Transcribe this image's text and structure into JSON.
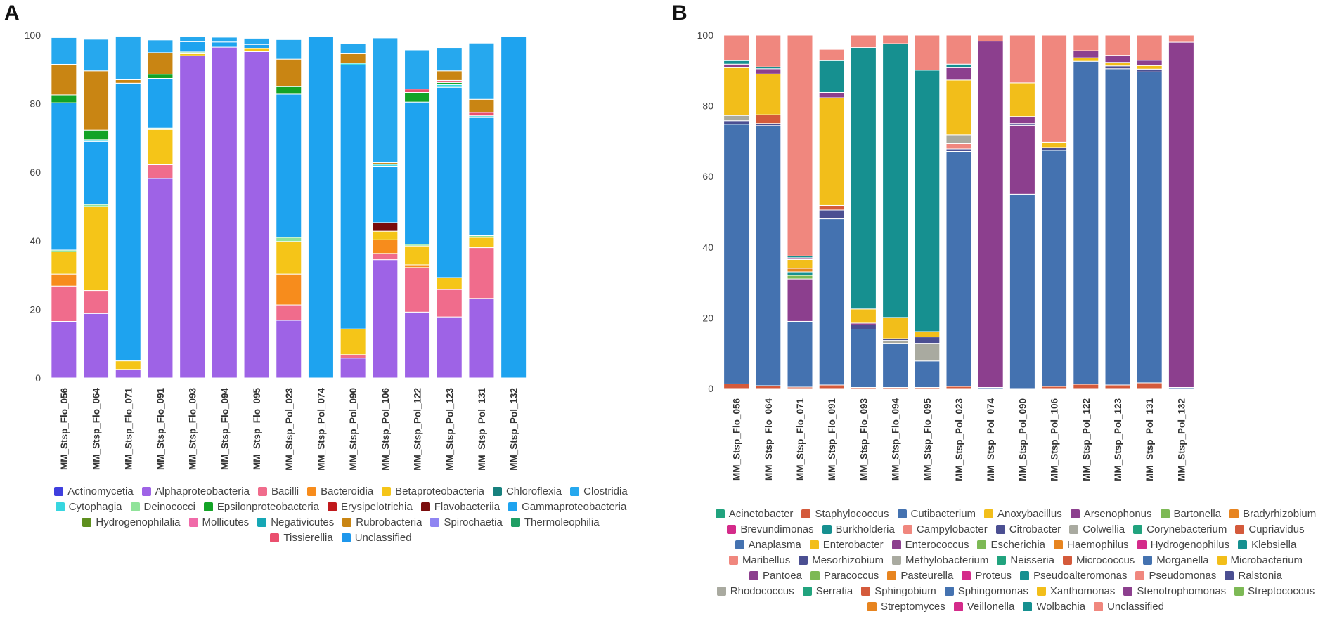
{
  "panel_labels": {
    "a": "A",
    "b": "B"
  },
  "chart_data": [
    {
      "type": "bar",
      "stacked": true,
      "panel": "A",
      "title": "",
      "xlabel": "",
      "ylabel": "",
      "ylim": [
        0,
        100
      ],
      "yticks": [
        0,
        20,
        40,
        60,
        80,
        100
      ],
      "categories": [
        "MM_Stsp_Flo_056",
        "MM_Stsp_Flo_064",
        "MM_Stsp_Flo_071",
        "MM_Stsp_Flo_091",
        "MM_Stsp_Flo_093",
        "MM_Stsp_Flo_094",
        "MM_Stsp_Flo_095",
        "MM_Stsp_Pol_023",
        "MM_Stsp_Pol_074",
        "MM_Stsp_Pol_090",
        "MM_Stsp_Pol_106",
        "MM_Stsp_Pol_122",
        "MM_Stsp_Pol_123",
        "MM_Stsp_Pol_131",
        "MM_Stsp_Pol_132"
      ],
      "legend": [
        {
          "name": "Actinomycetia",
          "color": "#3F3FDE"
        },
        {
          "name": "Alphaproteobacteria",
          "color": "#9E63E6"
        },
        {
          "name": "Bacilli",
          "color": "#F06C8C"
        },
        {
          "name": "Bacteroidia",
          "color": "#F78C1C"
        },
        {
          "name": "Betaproteobacteria",
          "color": "#F5C518"
        },
        {
          "name": "Chloroflexia",
          "color": "#17807D"
        },
        {
          "name": "Clostridia",
          "color": "#26A8EE"
        },
        {
          "name": "Cytophagia",
          "color": "#37D6E0"
        },
        {
          "name": "Deinococci",
          "color": "#90E39A"
        },
        {
          "name": "Epsilonproteobacteria",
          "color": "#13A326"
        },
        {
          "name": "Erysipelotrichia",
          "color": "#C0191C"
        },
        {
          "name": "Flavobacteriia",
          "color": "#7A0C0C"
        },
        {
          "name": "Gammaproteobacteria",
          "color": "#1EA3EF"
        },
        {
          "name": "Hydrogenophilalia",
          "color": "#5E8F1E"
        },
        {
          "name": "Mollicutes",
          "color": "#F06AA8"
        },
        {
          "name": "Negativicutes",
          "color": "#16A7B5"
        },
        {
          "name": "Rubrobacteria",
          "color": "#C98513"
        },
        {
          "name": "Spirochaetia",
          "color": "#8F85F2"
        },
        {
          "name": "Thermoleophilia",
          "color": "#1F9E64"
        },
        {
          "name": "Tissierellia",
          "color": "#EA4F6E"
        },
        {
          "name": "Unclassified",
          "color": "#1E97EC"
        }
      ],
      "series": [
        {
          "name": "Alphaproteobacteria",
          "color": "#9E63E6",
          "values": [
            16.5,
            18.8,
            2.5,
            58.2,
            94,
            96.5,
            95.2,
            16.8,
            0,
            5.8,
            34.5,
            19.2,
            17.8,
            23.2,
            0
          ]
        },
        {
          "name": "Bacilli",
          "color": "#F06C8C",
          "values": [
            10.3,
            6.7,
            0,
            4,
            0,
            0,
            0,
            4.5,
            0,
            1,
            1.8,
            13,
            8,
            14.8,
            0
          ]
        },
        {
          "name": "Bacteroidia",
          "color": "#F78C1C",
          "values": [
            3.5,
            0,
            0,
            0,
            0,
            0,
            0,
            9,
            0,
            0,
            4,
            0.8,
            0,
            0,
            0
          ]
        },
        {
          "name": "Betaproteobacteria",
          "color": "#F5C518",
          "values": [
            6.5,
            24.5,
            2.5,
            10.3,
            0.6,
            0,
            0.9,
            9.5,
            0,
            7.5,
            2.5,
            5.5,
            3.5,
            3,
            0
          ]
        },
        {
          "name": "Deinococci",
          "color": "#90E39A",
          "values": [
            0.5,
            0.6,
            0,
            0.4,
            0.5,
            0,
            0,
            1.2,
            0,
            0,
            0,
            0.5,
            0,
            0.5,
            0
          ]
        },
        {
          "name": "Flavobacteriia",
          "color": "#7A0C0C",
          "values": [
            0,
            0,
            0,
            0,
            0,
            0,
            0,
            0,
            0,
            0,
            2.5,
            0,
            0,
            0,
            0
          ]
        },
        {
          "name": "Gammaproteobacteria",
          "color": "#1EA3EF",
          "values": [
            43,
            18.4,
            81,
            14.5,
            3,
            1.5,
            1.2,
            41.8,
            99.6,
            77,
            16.5,
            41.5,
            55.5,
            34.5,
            99.6
          ]
        },
        {
          "name": "Cytophagia",
          "color": "#37D6E0",
          "values": [
            0,
            0.5,
            0,
            0,
            0,
            0,
            0,
            0,
            0,
            0.5,
            0.5,
            0,
            0.8,
            0.5,
            0
          ]
        },
        {
          "name": "Epsilonproteobacteria",
          "color": "#13A326",
          "values": [
            2.3,
            2.8,
            0,
            1.2,
            0,
            0,
            0,
            2.2,
            0,
            0,
            0,
            2.8,
            0.6,
            0,
            0
          ]
        },
        {
          "name": "Tissierellia",
          "color": "#EA4F6E",
          "values": [
            0,
            0,
            0,
            0,
            0,
            0,
            0,
            0,
            0,
            0,
            0,
            1,
            0.6,
            1,
            0
          ]
        },
        {
          "name": "Rubrobacteria",
          "color": "#C98513",
          "values": [
            8.9,
            17.3,
            1,
            6.3,
            0,
            0,
            0,
            8,
            0,
            2.8,
            0.5,
            0,
            2.8,
            3.8,
            0
          ]
        },
        {
          "name": "Clostridia",
          "color": "#26A8EE",
          "values": [
            7.8,
            9.2,
            12.7,
            3.7,
            1.5,
            1.4,
            1.8,
            5.7,
            0,
            3,
            36.4,
            11.4,
            6.6,
            16.4,
            0
          ]
        }
      ]
    },
    {
      "type": "bar",
      "stacked": true,
      "panel": "B",
      "title": "",
      "xlabel": "",
      "ylabel": "",
      "ylim": [
        0,
        100
      ],
      "yticks": [
        0,
        20,
        40,
        60,
        80,
        100
      ],
      "categories": [
        "MM_Stsp_Flo_056",
        "MM_Stsp_Flo_064",
        "MM_Stsp_Flo_071",
        "MM_Stsp_Flo_091",
        "MM_Stsp_Flo_093",
        "MM_Stsp_Flo_094",
        "MM_Stsp_Flo_095",
        "MM_Stsp_Pol_023",
        "MM_Stsp_Pol_074",
        "MM_Stsp_Pol_090",
        "MM_Stsp_Pol_106",
        "MM_Stsp_Pol_122",
        "MM_Stsp_Pol_123",
        "MM_Stsp_Pol_131",
        "MM_Stsp_Pol_132"
      ],
      "legend": [
        {
          "name": "Acinetobacter",
          "color": "#21A37E"
        },
        {
          "name": "Staphylococcus",
          "color": "#D45A3B"
        },
        {
          "name": "Cutibacterium",
          "color": "#4472B0"
        },
        {
          "name": "Anoxybacillus",
          "color": "#F2BE1A"
        },
        {
          "name": "Arsenophonus",
          "color": "#8C3F8E"
        },
        {
          "name": "Bartonella",
          "color": "#7DB955"
        },
        {
          "name": "Bradyrhizobium",
          "color": "#E7841F"
        },
        {
          "name": "Brevundimonas",
          "color": "#D42B8A"
        },
        {
          "name": "Burkholderia",
          "color": "#169090"
        },
        {
          "name": "Campylobacter",
          "color": "#F0877E"
        },
        {
          "name": "Citrobacter",
          "color": "#4B4F92"
        },
        {
          "name": "Colwellia",
          "color": "#A9AAA0"
        },
        {
          "name": "Corynebacterium",
          "color": "#21A37E"
        },
        {
          "name": "Cupriavidus",
          "color": "#D45A3B"
        },
        {
          "name": "Anaplasma",
          "color": "#4472B0"
        },
        {
          "name": "Enterobacter",
          "color": "#F2BE1A"
        },
        {
          "name": "Enterococcus",
          "color": "#8C3F8E"
        },
        {
          "name": "Escherichia",
          "color": "#7DB955"
        },
        {
          "name": "Haemophilus",
          "color": "#E7841F"
        },
        {
          "name": "Hydrogenophilus",
          "color": "#D42B8A"
        },
        {
          "name": "Klebsiella",
          "color": "#169090"
        },
        {
          "name": "Maribellus",
          "color": "#F0877E"
        },
        {
          "name": "Mesorhizobium",
          "color": "#4B4F92"
        },
        {
          "name": "Methylobacterium",
          "color": "#A9AAA0"
        },
        {
          "name": "Neisseria",
          "color": "#21A37E"
        },
        {
          "name": "Micrococcus",
          "color": "#D45A3B"
        },
        {
          "name": "Morganella",
          "color": "#4472B0"
        },
        {
          "name": "Microbacterium",
          "color": "#F2BE1A"
        },
        {
          "name": "Pantoea",
          "color": "#8C3F8E"
        },
        {
          "name": "Paracoccus",
          "color": "#7DB955"
        },
        {
          "name": "Pasteurella",
          "color": "#E7841F"
        },
        {
          "name": "Proteus",
          "color": "#D42B8A"
        },
        {
          "name": "Pseudoalteromonas",
          "color": "#169090"
        },
        {
          "name": "Pseudomonas",
          "color": "#F0877E"
        },
        {
          "name": "Ralstonia",
          "color": "#4B4F92"
        },
        {
          "name": "Rhodococcus",
          "color": "#A9AAA0"
        },
        {
          "name": "Serratia",
          "color": "#21A37E"
        },
        {
          "name": "Sphingobium",
          "color": "#D45A3B"
        },
        {
          "name": "Sphingomonas",
          "color": "#4472B0"
        },
        {
          "name": "Xanthomonas",
          "color": "#F2BE1A"
        },
        {
          "name": "Stenotrophomonas",
          "color": "#8C3F8E"
        },
        {
          "name": "Streptococcus",
          "color": "#7DB955"
        },
        {
          "name": "Streptomyces",
          "color": "#E7841F"
        },
        {
          "name": "Veillonella",
          "color": "#D42B8A"
        },
        {
          "name": "Wolbachia",
          "color": "#169090"
        },
        {
          "name": "Unclassified",
          "color": "#F0877E"
        }
      ],
      "series": [
        {
          "name": "Staphylococcus",
          "color": "#D45A3B",
          "values": [
            1.3,
            0.8,
            0.4,
            1,
            0.3,
            0.3,
            0.3,
            0.6,
            0,
            0,
            0.6,
            1.2,
            1,
            1.6,
            0
          ]
        },
        {
          "name": "Cutibacterium",
          "color": "#4472B0",
          "values": [
            73.5,
            73.6,
            18.6,
            47,
            16.5,
            12.5,
            7.5,
            66.5,
            0.3,
            55,
            66.8,
            91.4,
            89.5,
            88,
            0.3
          ]
        },
        {
          "name": "Colwellia",
          "color": "#A9AAA0",
          "values": [
            0,
            0,
            0,
            0,
            0,
            0.8,
            5,
            0,
            0,
            0,
            0,
            0,
            0,
            0,
            0
          ]
        },
        {
          "name": "Arsenophonus",
          "color": "#8C3F8E",
          "values": [
            0,
            0,
            12,
            0,
            0,
            0,
            0,
            0,
            0,
            19.5,
            0,
            0,
            0,
            0,
            0
          ]
        },
        {
          "name": "Citrobacter",
          "color": "#4B4F92",
          "values": [
            1,
            0.6,
            0,
            2.5,
            1.2,
            0.5,
            1.8,
            0.7,
            0,
            0.5,
            0.8,
            0,
            0.8,
            0.8,
            0
          ]
        },
        {
          "name": "Stenotrophomonas",
          "color": "#8C3F8E",
          "values": [
            0,
            0,
            0,
            0,
            0.5,
            0,
            0,
            0,
            98,
            2,
            0,
            0,
            0,
            0,
            97.7
          ]
        },
        {
          "name": "Cupriavidus",
          "color": "#D45A3B",
          "values": [
            0,
            2.5,
            0,
            1.3,
            0,
            0,
            0,
            0,
            0,
            0,
            0,
            0,
            0,
            0,
            0
          ]
        },
        {
          "name": "Bartonella",
          "color": "#7DB955",
          "values": [
            0,
            0,
            1,
            0,
            0,
            0,
            0,
            0,
            0,
            0,
            0,
            0,
            0,
            0,
            0
          ]
        },
        {
          "name": "Klebsiella",
          "color": "#169090",
          "values": [
            0,
            0,
            1,
            0,
            0,
            0,
            0,
            0,
            0,
            0,
            0,
            0,
            0,
            0,
            0
          ]
        },
        {
          "name": "Campylobacter",
          "color": "#F0877E",
          "values": [
            0,
            0,
            0,
            0,
            0,
            0,
            0,
            1.5,
            0,
            0,
            0,
            0,
            0,
            0,
            0
          ]
        },
        {
          "name": "Rhodococcus",
          "color": "#A9AAA0",
          "values": [
            1.5,
            0,
            0,
            0,
            0,
            0,
            0,
            2.5,
            0,
            0,
            0,
            0,
            0,
            0,
            0
          ]
        },
        {
          "name": "Bradyrhizobium",
          "color": "#E7841F",
          "values": [
            0,
            0,
            1,
            0,
            0,
            0,
            0,
            0,
            0,
            0,
            0,
            0,
            0,
            0,
            0
          ]
        },
        {
          "name": "Anoxybacillus",
          "color": "#F2BE1A",
          "values": [
            13.5,
            11.5,
            2.5,
            30.5,
            4,
            6,
            1.5,
            15.5,
            0,
            9.5,
            1.5,
            1,
            1,
            1,
            0
          ]
        },
        {
          "name": "Enterococcus",
          "color": "#8C3F8E",
          "values": [
            1,
            1.5,
            0.5,
            1.5,
            0,
            0,
            0,
            3.5,
            0,
            0,
            0,
            2,
            2,
            1.5,
            0
          ]
        },
        {
          "name": "Wolbachia",
          "color": "#169090",
          "values": [
            1,
            0.5,
            0.5,
            9,
            74,
            77.5,
            74,
            1,
            0,
            0,
            0,
            0,
            0,
            0,
            0
          ]
        },
        {
          "name": "Maribellus",
          "color": "#F0877E",
          "values": [
            7.2,
            9,
            62.5,
            3.2,
            3.5,
            2.4,
            9.9,
            8.2,
            1.7,
            13.5,
            30.3,
            4.4,
            5.7,
            7.1,
            2
          ]
        }
      ]
    }
  ]
}
